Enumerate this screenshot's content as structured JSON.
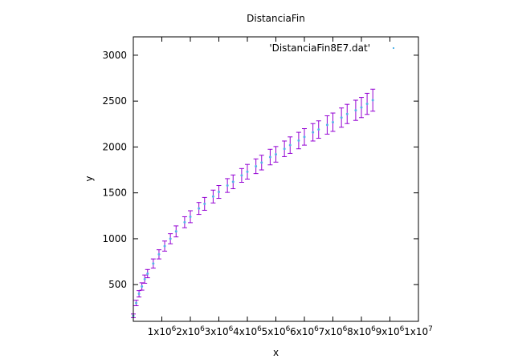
{
  "chart_data": {
    "type": "scatter",
    "title": "DistanciaFin",
    "xlabel": "x",
    "ylabel": "y",
    "xlim": [
      0,
      10000000
    ],
    "ylim": [
      100,
      3200
    ],
    "x_ticks": [
      1000000,
      2000000,
      3000000,
      4000000,
      5000000,
      6000000,
      7000000,
      8000000,
      9000000,
      10000000
    ],
    "x_tick_labels": [
      "1x10",
      "2x10",
      "3x10",
      "4x10",
      "5x10",
      "6x10",
      "7x10",
      "8x10",
      "9x10",
      "1x10"
    ],
    "x_tick_exponents": [
      "6",
      "6",
      "6",
      "6",
      "6",
      "6",
      "6",
      "6",
      "6",
      "7"
    ],
    "y_ticks": [
      500,
      1000,
      1500,
      2000,
      2500,
      3000
    ],
    "y_tick_labels": [
      "500",
      "1000",
      "1500",
      "2000",
      "2500",
      "3000"
    ],
    "legend_position": "top-right",
    "grid": false,
    "series": [
      {
        "name": "'DistanciaFin8E7.dat'",
        "marker_color": "#56b4e9",
        "errorbar_color": "#9400d3",
        "x": [
          0,
          100000,
          200000,
          300000,
          400000,
          500000,
          700000,
          900000,
          1100000,
          1300000,
          1500000,
          1800000,
          2000000,
          2300000,
          2500000,
          2800000,
          3000000,
          3300000,
          3500000,
          3800000,
          4000000,
          4300000,
          4500000,
          4800000,
          5000000,
          5300000,
          5500000,
          5800000,
          6000000,
          6300000,
          6500000,
          6800000,
          7000000,
          7300000,
          7500000,
          7800000,
          8000000,
          8200000,
          8400000
        ],
        "y": [
          160,
          300,
          400,
          480,
          560,
          620,
          730,
          830,
          920,
          1000,
          1080,
          1180,
          1240,
          1330,
          1380,
          1460,
          1510,
          1580,
          1620,
          1690,
          1730,
          1790,
          1830,
          1890,
          1920,
          1980,
          2020,
          2070,
          2110,
          2160,
          2190,
          2240,
          2270,
          2320,
          2360,
          2400,
          2430,
          2470,
          2510
        ],
        "y_error_half_width": [
          20,
          30,
          35,
          40,
          45,
          45,
          50,
          50,
          55,
          55,
          60,
          60,
          65,
          65,
          70,
          70,
          70,
          75,
          75,
          75,
          80,
          80,
          80,
          85,
          85,
          85,
          90,
          90,
          90,
          95,
          95,
          100,
          100,
          105,
          105,
          110,
          110,
          115,
          120
        ]
      }
    ]
  }
}
